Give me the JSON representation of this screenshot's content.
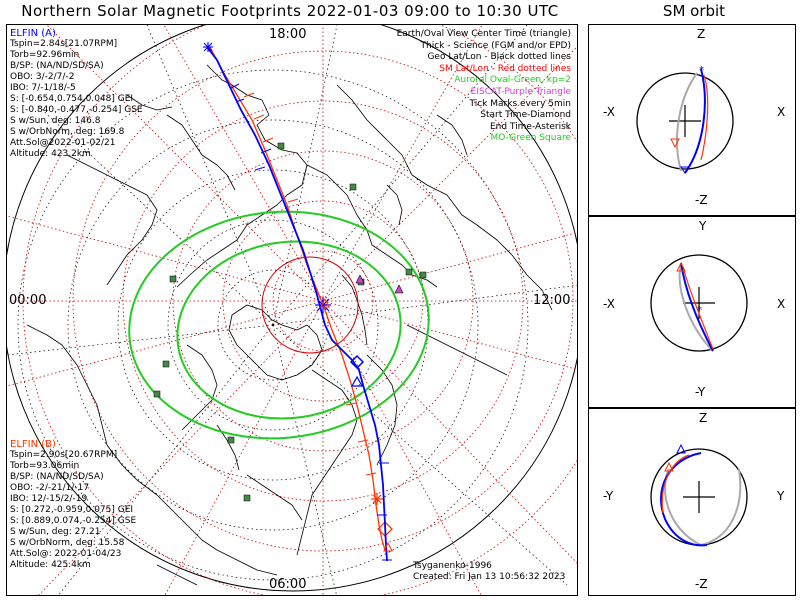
{
  "header": {
    "title": "Northern Solar Magnetic Footprints 2022-01-03 09:00 to 10:30 UTC",
    "sm_title": "SM orbit"
  },
  "map": {
    "mlt_labels": {
      "top": "18:00",
      "left": "00:00",
      "right": "12:00",
      "bottom": "06:00"
    },
    "legend": [
      {
        "text": "Earth/Oval View Center Time (triangle)",
        "color": "#000000"
      },
      {
        "text": "Thick - Science (FGM and/or EPD)",
        "color": "#000000"
      },
      {
        "text": "Geo Lat/Lon - Black dotted lines",
        "color": "#000000"
      },
      {
        "text": "SM Lat/Lon - Red dotted lines",
        "color": "#ff0000"
      },
      {
        "text": "Auroral Oval-Green, kp=2",
        "color": "#22cc22"
      },
      {
        "text": "EISCAT-Purple Triangle",
        "color": "#cc44cc"
      },
      {
        "text": "Tick Marks every 5min",
        "color": "#000000"
      },
      {
        "text": "Start Time-Diamond",
        "color": "#000000"
      },
      {
        "text": "End Time-Asterisk",
        "color": "#000000"
      },
      {
        "text": "MO-Green Square",
        "color": "#22cc22"
      }
    ],
    "elfin_a": {
      "name": "ELFIN (A)",
      "color": "#0000ff",
      "lines": [
        "Tspin=2.84s[21.07RPM]",
        "Torb=92.96min",
        "B/SP: (NA/ND/SD/SA)",
        "OBO: 3/-2/7/-2",
        "IBO: 7/-1/18/-5",
        "S: [-0.654,0.754,0.048] GEI",
        "S: [-0.840,-0.477,-0.254] GSE",
        "S w/Sun, deg: 146.8",
        "S w/OrbNorm, deg: 169.8",
        "Att.Sol@2022-01-02/21",
        "Altitude: 423.2km"
      ]
    },
    "elfin_b": {
      "name": "ELFIN (B)",
      "color": "#ff3300",
      "lines": [
        "Tspin=2.90s[20.67RPM]",
        "Torb=93.06min",
        "B/SP: (NA/ND/SD/SA)",
        "OBO: -2/-21/1/-17",
        "IBO: 12/-15/2/-19",
        "S: [0.272,-0.959,0.075] GEI",
        "S: [0.889,0.074,-0.254] GSE",
        "S w/Sun, deg: 27.21",
        "S w/OrbNorm, deg: 15.58",
        "Att.Sol@: 2022-01-04/23",
        "Altitude: 425.4km"
      ]
    },
    "credits": [
      "Tsyganenko-1996",
      "Created: Fri Jan 13 10:56:32 2023"
    ]
  },
  "sm_panels": [
    {
      "top": "Z",
      "bottom": "-Z",
      "left": "-X",
      "right": "X"
    },
    {
      "top": "Y",
      "bottom": "-Y",
      "left": "-X",
      "right": "X"
    },
    {
      "top": "Z",
      "bottom": "-Z",
      "left": "-Y",
      "right": "Y"
    }
  ],
  "colors": {
    "elfin_a": "#0000ff",
    "elfin_b": "#ff3300",
    "oval": "#22cc22",
    "grid_sm": "#cc0000",
    "station": "#448844"
  },
  "chart_data": {
    "type": "scatter",
    "title": "Northern Solar Magnetic Footprints 2022-01-03 09:00 to 10:30 UTC",
    "projection": "polar, SM coordinates, MLT 00:00 left, 06:00 bottom, 12:00 right, 18:00 top",
    "grid": true,
    "series": [
      {
        "name": "ELFIN (A)",
        "color": "#0000ff"
      },
      {
        "name": "ELFIN (B)",
        "color": "#ff3300"
      }
    ]
  }
}
